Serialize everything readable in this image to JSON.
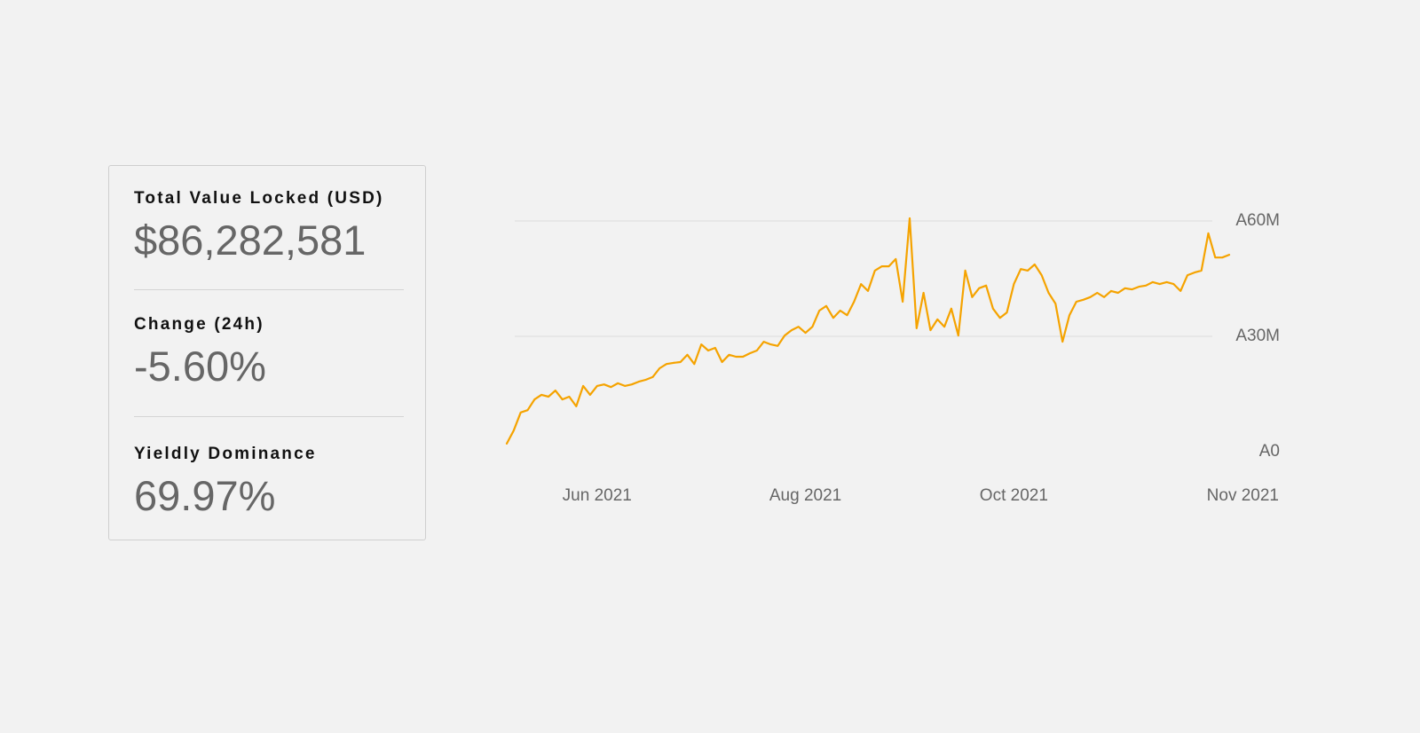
{
  "stats": [
    {
      "label": "Total Value Locked (USD)",
      "value": "$86,282,581"
    },
    {
      "label": "Change (24h)",
      "value": "-5.60%"
    },
    {
      "label": "Yieldly Dominance",
      "value": "69.97%"
    }
  ],
  "chart_data": {
    "type": "line",
    "color": "#f5a300",
    "grid": true,
    "ylim": [
      0,
      60000000
    ],
    "yticks": [
      {
        "value": 0,
        "label": "A0"
      },
      {
        "value": 30000000,
        "label": "A30M"
      },
      {
        "value": 60000000,
        "label": "A60M"
      }
    ],
    "categories": [
      null,
      null,
      null,
      null,
      null,
      null,
      null,
      null,
      null,
      null,
      null,
      null,
      null,
      "Jun 2021",
      null,
      null,
      null,
      null,
      null,
      null,
      null,
      null,
      null,
      null,
      null,
      null,
      null,
      null,
      null,
      null,
      null,
      null,
      null,
      null,
      null,
      null,
      null,
      null,
      null,
      null,
      null,
      null,
      null,
      "Aug 2021",
      null,
      null,
      null,
      null,
      null,
      null,
      null,
      null,
      null,
      null,
      null,
      null,
      null,
      null,
      null,
      null,
      null,
      null,
      null,
      null,
      null,
      null,
      null,
      null,
      null,
      null,
      null,
      null,
      null,
      "Oct 2021",
      null,
      null,
      null,
      null,
      null,
      null,
      null,
      null,
      null,
      null,
      null,
      null,
      null,
      null,
      null,
      null,
      null,
      null,
      null,
      null,
      null,
      null,
      null,
      null,
      null,
      null,
      null,
      null,
      null,
      null,
      "Nov 2021"
    ],
    "values": [
      2100000,
      5500000,
      10200000,
      10800000,
      13600000,
      14800000,
      14300000,
      15900000,
      13600000,
      14300000,
      11800000,
      17100000,
      14800000,
      17100000,
      17500000,
      16800000,
      17800000,
      17100000,
      17500000,
      18200000,
      18700000,
      19400000,
      21700000,
      22800000,
      23100000,
      23300000,
      25200000,
      22800000,
      27900000,
      26300000,
      27000000,
      23300000,
      25200000,
      24700000,
      24700000,
      25600000,
      26300000,
      28600000,
      27900000,
      27500000,
      30200000,
      31600000,
      32500000,
      30900000,
      32500000,
      36700000,
      37900000,
      34800000,
      36700000,
      35500000,
      39000000,
      43600000,
      41800000,
      47100000,
      48200000,
      48200000,
      50100000,
      39000000,
      60700000,
      32100000,
      41300000,
      31600000,
      34400000,
      32500000,
      37200000,
      30200000,
      47100000,
      40200000,
      42500000,
      43200000,
      37200000,
      34800000,
      36200000,
      43600000,
      47500000,
      47100000,
      48700000,
      45900000,
      41300000,
      38500000,
      28600000,
      35500000,
      39000000,
      39500000,
      40200000,
      41300000,
      40200000,
      41800000,
      41300000,
      42500000,
      42200000,
      42900000,
      43200000,
      44100000,
      43600000,
      44100000,
      43600000,
      41800000,
      45900000,
      46600000,
      47100000,
      56800000,
      50500000,
      50500000,
      51200000
    ]
  }
}
